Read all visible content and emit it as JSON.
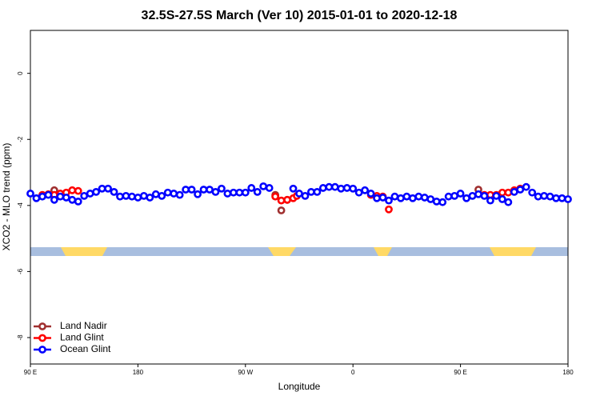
{
  "chart_data": {
    "type": "scatter",
    "title": "32.5S-27.5S March (Ver 10)   2015-01-01 to 2020-12-18",
    "x_label": "Longitude",
    "y_label": "XCO2 - MLO trend (ppm)",
    "xlim": [
      90,
      540
    ],
    "ylim": [
      -8.8,
      1.3
    ],
    "xticks": [
      {
        "value": 90,
        "label": "90 E"
      },
      {
        "value": 180,
        "label": "180"
      },
      {
        "value": 270,
        "label": "90 W"
      },
      {
        "value": 360,
        "label": "0"
      },
      {
        "value": 450,
        "label": "90 E"
      },
      {
        "value": 540,
        "label": "180"
      }
    ],
    "yticks": [
      0,
      -2,
      -4,
      -6,
      -8
    ],
    "legend": "bottom-left",
    "series": [
      {
        "name": "Land Nadir",
        "color": "#a03030",
        "x": [
          110,
          295,
          300,
          305,
          465
        ],
        "values": [
          -3.54,
          -3.68,
          -4.15,
          -3.83,
          -3.52
        ]
      },
      {
        "name": "Land Glint",
        "color": "#ff0000",
        "x": [
          100,
          105,
          110,
          115,
          120,
          125,
          130,
          295,
          300,
          305,
          310,
          313,
          375,
          380,
          385,
          390,
          470,
          475,
          480,
          485,
          490,
          495,
          500
        ],
        "values": [
          -3.68,
          -3.66,
          -3.68,
          -3.64,
          -3.61,
          -3.54,
          -3.56,
          -3.73,
          -3.85,
          -3.83,
          -3.78,
          -3.71,
          -3.68,
          -3.71,
          -3.73,
          -4.12,
          -3.68,
          -3.68,
          -3.68,
          -3.61,
          -3.61,
          -3.54,
          -3.49
        ]
      },
      {
        "name": "Ocean Glint",
        "color": "#0000ff",
        "x": [
          90,
          95,
          100,
          105,
          110,
          115,
          120,
          125,
          130,
          135,
          140,
          145,
          150,
          155,
          160,
          165,
          170,
          175,
          180,
          185,
          190,
          195,
          200,
          205,
          210,
          215,
          220,
          225,
          230,
          235,
          240,
          245,
          250,
          255,
          260,
          265,
          270,
          275,
          280,
          285,
          290,
          310,
          315,
          320,
          325,
          330,
          335,
          340,
          345,
          350,
          355,
          360,
          365,
          370,
          375,
          380,
          385,
          390,
          395,
          400,
          405,
          410,
          415,
          420,
          425,
          430,
          435,
          440,
          445,
          450,
          455,
          460,
          465,
          470,
          475,
          480,
          485,
          490,
          495,
          500,
          505,
          510,
          515,
          520,
          525,
          530,
          535,
          540
        ],
        "values": [
          -3.64,
          -3.78,
          -3.73,
          -3.68,
          -3.83,
          -3.73,
          -3.76,
          -3.83,
          -3.88,
          -3.71,
          -3.64,
          -3.59,
          -3.49,
          -3.49,
          -3.59,
          -3.73,
          -3.71,
          -3.73,
          -3.76,
          -3.71,
          -3.76,
          -3.66,
          -3.71,
          -3.61,
          -3.64,
          -3.68,
          -3.52,
          -3.52,
          -3.66,
          -3.52,
          -3.52,
          -3.59,
          -3.49,
          -3.64,
          -3.61,
          -3.61,
          -3.61,
          -3.47,
          -3.59,
          -3.42,
          -3.47,
          -3.49,
          -3.64,
          -3.71,
          -3.59,
          -3.59,
          -3.47,
          -3.44,
          -3.44,
          -3.49,
          -3.47,
          -3.49,
          -3.61,
          -3.54,
          -3.64,
          -3.78,
          -3.76,
          -3.85,
          -3.73,
          -3.78,
          -3.73,
          -3.78,
          -3.73,
          -3.76,
          -3.81,
          -3.88,
          -3.9,
          -3.73,
          -3.71,
          -3.64,
          -3.78,
          -3.71,
          -3.66,
          -3.71,
          -3.85,
          -3.71,
          -3.81,
          -3.9,
          -3.59,
          -3.52,
          -3.44,
          -3.61,
          -3.73,
          -3.71,
          -3.73,
          -3.78,
          -3.78,
          -3.81
        ]
      }
    ]
  }
}
